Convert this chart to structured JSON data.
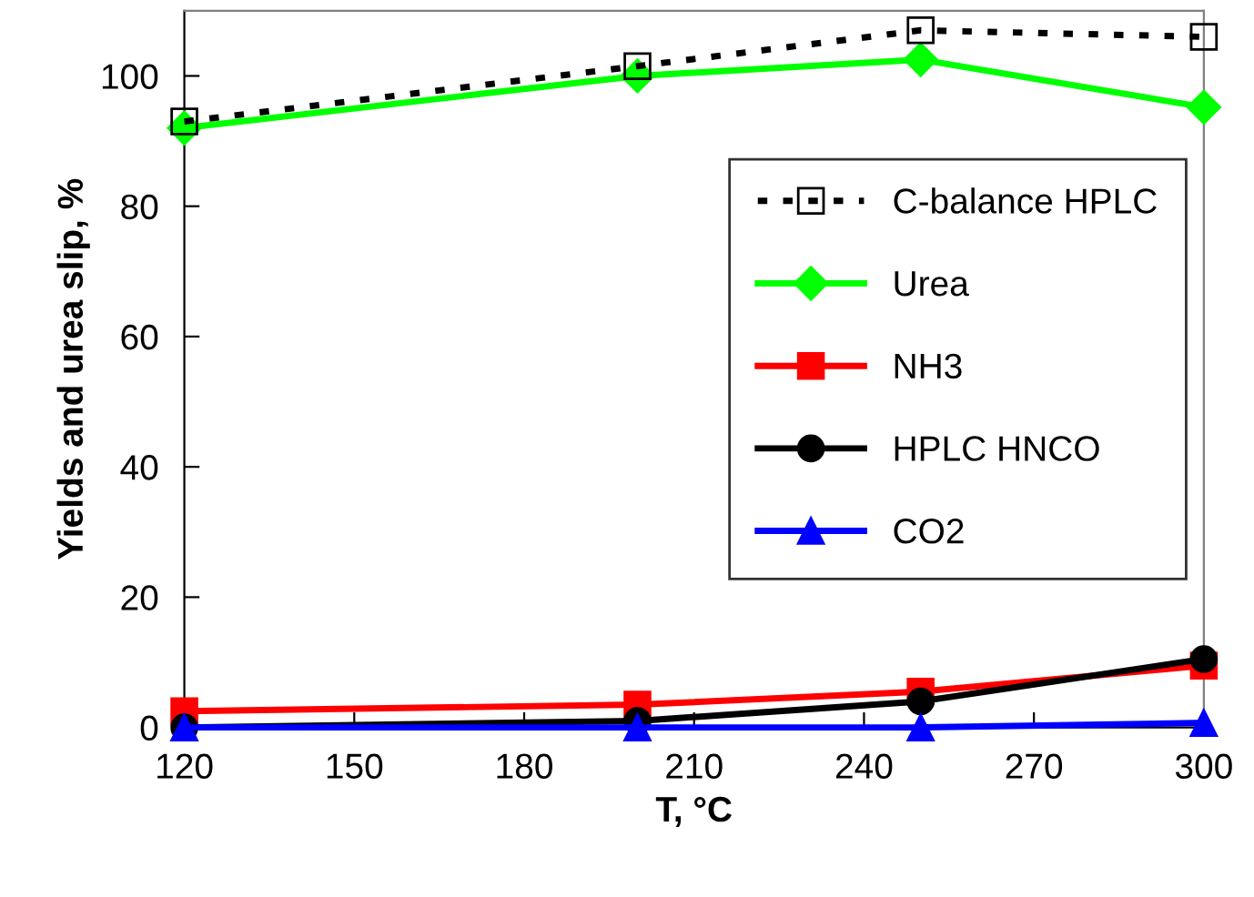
{
  "chart_data": {
    "type": "line",
    "xlabel": "T, °C",
    "ylabel": "Yields and urea slip, %",
    "xlim": [
      120,
      300
    ],
    "xticks": [
      120,
      150,
      180,
      210,
      240,
      270,
      300
    ],
    "ylim": [
      0,
      110
    ],
    "yticks": [
      0,
      20,
      40,
      60,
      80,
      100
    ],
    "x": [
      120,
      200,
      250,
      300
    ],
    "grid": false,
    "legend": "right",
    "series": [
      {
        "name": "C-balance HPLC",
        "color": "#000000",
        "values": [
          93,
          101.5,
          107,
          106
        ],
        "marker": "square",
        "line_style": "dotted"
      },
      {
        "name": "Urea",
        "color": "#00ff00",
        "values": [
          92,
          100,
          102.5,
          95.2
        ],
        "marker": "diamond",
        "line_style": "solid"
      },
      {
        "name": "NH3",
        "color": "#ff0000",
        "values": [
          2.5,
          3.5,
          5.5,
          9.5
        ],
        "marker": "square",
        "line_style": "solid"
      },
      {
        "name": "HPLC HNCO",
        "color": "#000000",
        "values": [
          0,
          1,
          4,
          10.5
        ],
        "marker": "circle",
        "line_style": "solid"
      },
      {
        "name": "CO2",
        "color": "#0000ff",
        "values": [
          0,
          0,
          0,
          0.7
        ],
        "marker": "triangle",
        "line_style": "solid"
      }
    ]
  }
}
